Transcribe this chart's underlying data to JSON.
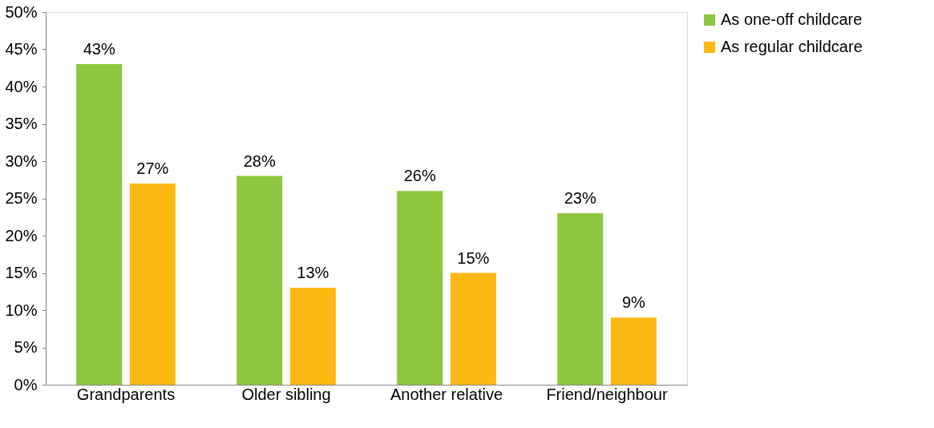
{
  "chart_data": {
    "type": "bar",
    "categories": [
      "Grandparents",
      "Older sibling",
      "Another relative",
      "Friend/neighbour"
    ],
    "series": [
      {
        "name": "As one-off childcare",
        "color": "#8dc63f",
        "values": [
          43,
          28,
          26,
          23
        ],
        "value_labels": [
          "43%",
          "28%",
          "26%",
          "23%"
        ]
      },
      {
        "name": "As regular childcare",
        "color": "#fdb913",
        "values": [
          27,
          13,
          15,
          9
        ],
        "value_labels": [
          "27%",
          "13%",
          "15%",
          "9%"
        ]
      }
    ],
    "ylim": [
      0,
      50
    ],
    "yticks": [
      {
        "value": 0,
        "label": "0%"
      },
      {
        "value": 5,
        "label": "5%"
      },
      {
        "value": 10,
        "label": "10%"
      },
      {
        "value": 15,
        "label": "15%"
      },
      {
        "value": 20,
        "label": "20%"
      },
      {
        "value": 25,
        "label": "25%"
      },
      {
        "value": 30,
        "label": "30%"
      },
      {
        "value": 35,
        "label": "35%"
      },
      {
        "value": 40,
        "label": "40%"
      },
      {
        "value": 45,
        "label": "45%"
      },
      {
        "value": 50,
        "label": "50%"
      }
    ],
    "grid": false,
    "legend": "right"
  }
}
